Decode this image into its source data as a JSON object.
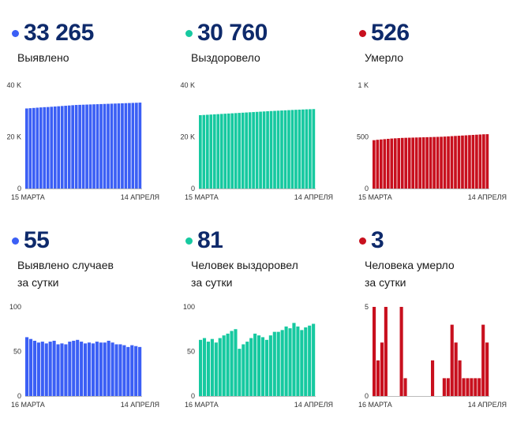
{
  "panels": [
    {
      "id": "detected-total",
      "value": "33 265",
      "label_lines": [
        "Выявлено"
      ],
      "color": "#3b5ff5",
      "chart_data": {
        "type": "bar",
        "x_start_label": "15 МАРТА",
        "x_end_label": "14 АПРЕЛЯ",
        "y_ticks": [
          {
            "v": 0,
            "label": "0"
          },
          {
            "v": 20000,
            "label": "20 K"
          },
          {
            "v": 40000,
            "label": "40 K"
          }
        ],
        "ylim": [
          0,
          40000
        ],
        "values": [
          31000,
          31100,
          31200,
          31300,
          31400,
          31500,
          31550,
          31650,
          31750,
          31850,
          31950,
          32050,
          32150,
          32250,
          32350,
          32400,
          32450,
          32500,
          32550,
          32600,
          32650,
          32700,
          32750,
          32800,
          32850,
          32900,
          32950,
          33000,
          33050,
          33100,
          33150,
          33200,
          33265
        ]
      }
    },
    {
      "id": "recovered-total",
      "value": "30 760",
      "label_lines": [
        "Выздоровело"
      ],
      "color": "#16c9a0",
      "chart_data": {
        "type": "bar",
        "x_start_label": "15 МАРТА",
        "x_end_label": "14 АПРЕЛЯ",
        "y_ticks": [
          {
            "v": 0,
            "label": "0"
          },
          {
            "v": 20000,
            "label": "20 K"
          },
          {
            "v": 40000,
            "label": "40 K"
          }
        ],
        "ylim": [
          0,
          40000
        ],
        "values": [
          28400,
          28480,
          28560,
          28640,
          28720,
          28800,
          28880,
          28960,
          29040,
          29120,
          29200,
          29280,
          29360,
          29440,
          29520,
          29600,
          29680,
          29760,
          29840,
          29920,
          30000,
          30070,
          30140,
          30210,
          30280,
          30350,
          30420,
          30480,
          30540,
          30600,
          30660,
          30710,
          30760
        ]
      }
    },
    {
      "id": "deaths-total",
      "value": "526",
      "label_lines": [
        "Умерло"
      ],
      "color": "#c8101e",
      "chart_data": {
        "type": "bar",
        "x_start_label": "15 МАРТА",
        "x_end_label": "14 АПРЕЛЯ",
        "y_ticks": [
          {
            "v": 0,
            "label": "0"
          },
          {
            "v": 500,
            "label": "500"
          },
          {
            "v": 1000,
            "label": "1 K"
          }
        ],
        "ylim": [
          0,
          1000
        ],
        "values": [
          468,
          472,
          475,
          478,
          481,
          484,
          486,
          488,
          490,
          491,
          492,
          493,
          494,
          495,
          496,
          497,
          498,
          499,
          500,
          501,
          503,
          505,
          507,
          509,
          511,
          513,
          515,
          517,
          519,
          521,
          523,
          525,
          526
        ]
      }
    },
    {
      "id": "detected-daily",
      "value": "55",
      "label_lines": [
        "Выявлено случаев",
        "за сутки"
      ],
      "color": "#3b5ff5",
      "chart_data": {
        "type": "bar",
        "x_start_label": "16 МАРТА",
        "x_end_label": "14 АПРЕЛЯ",
        "y_ticks": [
          {
            "v": 0,
            "label": "0"
          },
          {
            "v": 50,
            "label": "50"
          },
          {
            "v": 100,
            "label": "100"
          }
        ],
        "ylim": [
          0,
          100
        ],
        "values": [
          66,
          64,
          62,
          60,
          61,
          59,
          61,
          62,
          58,
          59,
          58,
          61,
          62,
          63,
          61,
          59,
          60,
          59,
          61,
          60,
          60,
          62,
          60,
          58,
          58,
          57,
          55,
          57,
          56,
          55
        ]
      }
    },
    {
      "id": "recovered-daily",
      "value": "81",
      "label_lines": [
        "Человек выздоровел",
        "за сутки"
      ],
      "color": "#16c9a0",
      "chart_data": {
        "type": "bar",
        "x_start_label": "16 МАРТА",
        "x_end_label": "14 АПРЕЛЯ",
        "y_ticks": [
          {
            "v": 0,
            "label": "0"
          },
          {
            "v": 50,
            "label": "50"
          },
          {
            "v": 100,
            "label": "100"
          }
        ],
        "ylim": [
          0,
          100
        ],
        "values": [
          63,
          65,
          61,
          64,
          60,
          65,
          68,
          70,
          73,
          75,
          53,
          58,
          61,
          65,
          70,
          68,
          66,
          63,
          68,
          72,
          72,
          74,
          78,
          76,
          82,
          78,
          74,
          77,
          79,
          81
        ]
      }
    },
    {
      "id": "deaths-daily",
      "value": "3",
      "label_lines": [
        "Человека умерло",
        "за сутки"
      ],
      "color": "#c8101e",
      "chart_data": {
        "type": "bar",
        "x_start_label": "16 МАРТА",
        "x_end_label": "14 АПРЕЛЯ",
        "y_ticks": [
          {
            "v": 0,
            "label": "0"
          },
          {
            "v": 5,
            "label": "5"
          }
        ],
        "ylim": [
          0,
          5
        ],
        "values": [
          5,
          2,
          3,
          5,
          0,
          0,
          0,
          5,
          1,
          0,
          0,
          0,
          0,
          0,
          0,
          2,
          0,
          0,
          1,
          1,
          4,
          3,
          2,
          1,
          1,
          1,
          1,
          1,
          4,
          3
        ]
      }
    }
  ]
}
